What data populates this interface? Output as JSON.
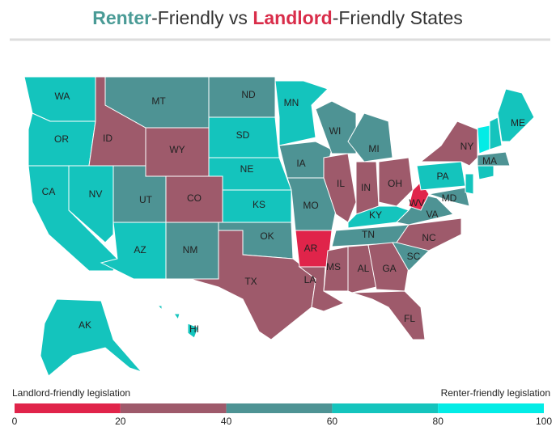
{
  "title_parts": [
    "Renter",
    "-Friendly vs ",
    "Landlord",
    "-Friendly States"
  ],
  "title_colors": [
    "#4a9b96",
    "#333333",
    "#d92d4a",
    "#333333"
  ],
  "legend": {
    "left_label": "Landlord-friendly legislation",
    "right_label": "Renter-friendly legislation",
    "ticks": [
      0,
      20,
      40,
      60,
      80,
      100
    ],
    "colors": [
      "#e0244a",
      "#9e5a6b",
      "#4e9394",
      "#14c4bd",
      "#03ece6"
    ]
  },
  "states": [
    {
      "label": "WA",
      "value": 70
    },
    {
      "label": "OR",
      "value": 70
    },
    {
      "label": "CA",
      "value": 70
    },
    {
      "label": "NV",
      "value": 70
    },
    {
      "label": "ID",
      "value": 30
    },
    {
      "label": "MT",
      "value": 50
    },
    {
      "label": "WY",
      "value": 30
    },
    {
      "label": "UT",
      "value": 50
    },
    {
      "label": "CO",
      "value": 30
    },
    {
      "label": "AZ",
      "value": 70
    },
    {
      "label": "NM",
      "value": 50
    },
    {
      "label": "ND",
      "value": 50
    },
    {
      "label": "SD",
      "value": 70
    },
    {
      "label": "NE",
      "value": 70
    },
    {
      "label": "KS",
      "value": 70
    },
    {
      "label": "OK",
      "value": 50
    },
    {
      "label": "TX",
      "value": 30
    },
    {
      "label": "MN",
      "value": 70
    },
    {
      "label": "IA",
      "value": 50
    },
    {
      "label": "MO",
      "value": 50
    },
    {
      "label": "AR",
      "value": 10
    },
    {
      "label": "LA",
      "value": 30
    },
    {
      "label": "WI",
      "value": 50
    },
    {
      "label": "IL",
      "value": 30
    },
    {
      "label": "MI",
      "value": 50
    },
    {
      "label": "IN",
      "value": 30
    },
    {
      "label": "OH",
      "value": 30
    },
    {
      "label": "KY",
      "value": 70
    },
    {
      "label": "TN",
      "value": 50
    },
    {
      "label": "MS",
      "value": 30
    },
    {
      "label": "AL",
      "value": 30
    },
    {
      "label": "GA",
      "value": 30
    },
    {
      "label": "FL",
      "value": 30
    },
    {
      "label": "SC",
      "value": 50
    },
    {
      "label": "NC",
      "value": 30
    },
    {
      "label": "VA",
      "value": 50
    },
    {
      "label": "WV",
      "value": 10
    },
    {
      "label": "PA",
      "value": 70
    },
    {
      "label": "NY",
      "value": 30
    },
    {
      "label": "MD",
      "value": 50
    },
    {
      "label": null,
      "value": 70
    },
    {
      "label": null,
      "value": 90
    },
    {
      "label": null,
      "value": 70
    },
    {
      "label": "ME",
      "value": 70
    },
    {
      "label": "MA",
      "value": 50
    },
    {
      "label": null,
      "value": 70
    },
    {
      "label": "AK",
      "value": 70
    },
    {
      "label": "HI",
      "value": 70
    }
  ]
}
